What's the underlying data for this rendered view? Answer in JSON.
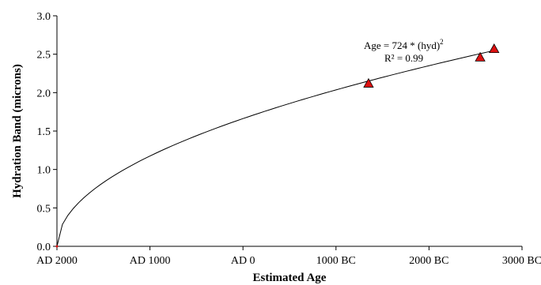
{
  "chart_data": {
    "type": "scatter",
    "title": "",
    "xlabel": "Estimated Age",
    "ylabel": "Hydration Band (microns)",
    "x_ticks": [
      {
        "value": 2000,
        "label": "AD 2000"
      },
      {
        "value": 1000,
        "label": "AD 1000"
      },
      {
        "value": 0,
        "label": "AD 0"
      },
      {
        "value": -1000,
        "label": "1000 BC"
      },
      {
        "value": -2000,
        "label": "2000 BC"
      },
      {
        "value": -3000,
        "label": "3000 BC"
      }
    ],
    "xlim": [
      2000,
      -3000
    ],
    "y_ticks": [
      "0.0",
      "0.5",
      "1.0",
      "1.5",
      "2.0",
      "2.5",
      "3.0"
    ],
    "ylim": [
      0,
      3
    ],
    "grid": false,
    "points": [
      {
        "x": -1350,
        "y": 2.12
      },
      {
        "x": -2550,
        "y": 2.46
      },
      {
        "x": -2700,
        "y": 2.57
      }
    ],
    "point_color": "#dd1111",
    "trendline": {
      "equation_text": "Age = 724 * (hyd)",
      "equation_exponent": "2",
      "r2_text": "R² = 0.99",
      "coefficient": 724,
      "zero_year": 2000
    }
  }
}
